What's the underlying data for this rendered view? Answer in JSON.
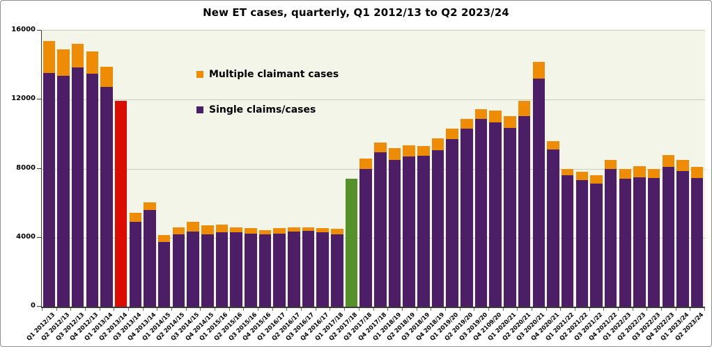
{
  "window": {
    "background": "#FFFFFF",
    "border_color": "#8F8F8F"
  },
  "chart_data": {
    "type": "bar",
    "stacked": true,
    "title": "New ET cases, quarterly, Q1 2012/13 to Q2 2023/24",
    "xlabel": "",
    "ylabel": "",
    "ylim": [
      0,
      16000
    ],
    "yticks": [
      0,
      4000,
      8000,
      12000,
      16000
    ],
    "grid": "horizontal",
    "legend_position": "inside-upper-left-of-plot",
    "colors": {
      "single": "#4C1E66",
      "multiple": "#EE8C06",
      "highlight_red": "#DB0D02",
      "highlight_green": "#55912B",
      "plot_background": "#F3F5E9",
      "gridline": "#C9CBBD",
      "axis": "#3A3A3A"
    },
    "categories": [
      "Q1 2012/13",
      "Q2 2012/13",
      "Q3 2012/13",
      "Q4 2012/13",
      "Q1 2013/14",
      "Q2 2013/14",
      "Q3 2013/14",
      "Q4 2013/14",
      "Q1 2014/15",
      "Q2 2014/15",
      "Q3 2014/15",
      "Q4 2014/15",
      "Q1 2015/16",
      "Q2 2015/16",
      "Q3 2015/16",
      "Q4 2015/16",
      "Q1 2016/17",
      "Q2 2016/17",
      "Q3 2016/17",
      "Q4 2016/17",
      "Q1 2017/18",
      "Q2 2017/18",
      "Q3 2017/18",
      "Q4 2017/18",
      "Q1 2018/19",
      "Q2 2018/19",
      "Q3 2018/19",
      "Q4 2018/19",
      "Q1 2019/20",
      "Q2 2019/20",
      "Q3 2019/20",
      "Q4 2109/20",
      "Q1 2020/21",
      "Q2 2020/21",
      "Q3 2020/21",
      "Q4 2020/21",
      "Q1 2021/22",
      "Q2 2021/22",
      "Q3 2021/22",
      "Q4 2021/22",
      "Q1 2022/23",
      "Q2 2022/23",
      "Q3 2022/23",
      "Q4 2022/23",
      "Q1 2023/24",
      "Q2 2023/24"
    ],
    "series": [
      {
        "name": "Single claims/cases",
        "color": "#4C1E66",
        "values": [
          13550,
          13400,
          13850,
          13500,
          12750,
          11950,
          4900,
          5600,
          3750,
          4200,
          4350,
          4200,
          4300,
          4300,
          4250,
          4200,
          4250,
          4350,
          4400,
          4300,
          4200,
          7400,
          8000,
          8950,
          8500,
          8700,
          8750,
          9050,
          9700,
          10300,
          10900,
          10700,
          10350,
          11050,
          13200,
          9100,
          7600,
          7350,
          7150,
          8000,
          7400,
          7500,
          7450,
          8100,
          7850,
          7450
        ]
      },
      {
        "name": "Multiple claimant cases",
        "color": "#EE8C06",
        "values": [
          1850,
          1500,
          1400,
          1300,
          1150,
          0,
          550,
          450,
          400,
          400,
          550,
          500,
          450,
          300,
          300,
          250,
          300,
          250,
          200,
          250,
          300,
          0,
          600,
          550,
          700,
          650,
          550,
          700,
          600,
          600,
          550,
          650,
          700,
          900,
          1000,
          500,
          400,
          450,
          450,
          500,
          600,
          650,
          550,
          700,
          650,
          650
        ]
      }
    ],
    "highlights": [
      {
        "index": 5,
        "category": "Q2 2013/14",
        "color": "#DB0D02",
        "total": 11950
      },
      {
        "index": 21,
        "category": "Q2 2017/18",
        "color": "#55912B",
        "total": 7400
      }
    ],
    "legend": [
      {
        "label": "Multiple claimant cases",
        "color": "#EE8C06"
      },
      {
        "label": "Single claims/cases",
        "color": "#4C1E66"
      }
    ]
  }
}
